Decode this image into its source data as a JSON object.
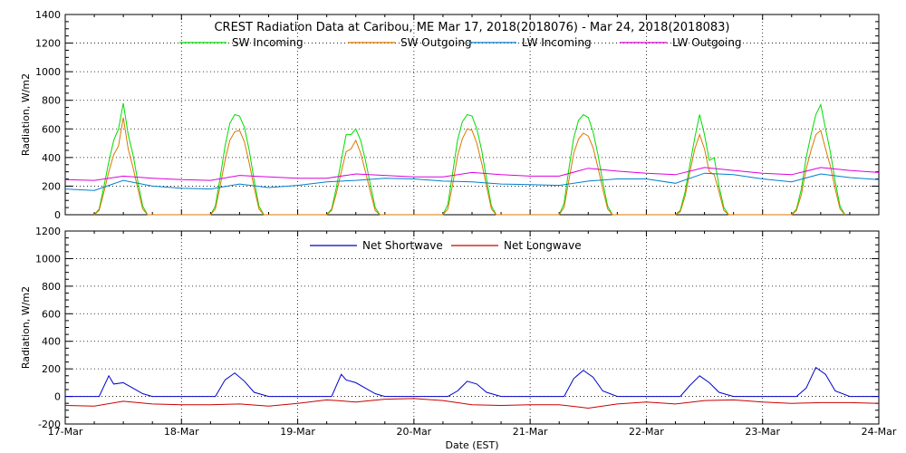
{
  "chart_data": [
    {
      "type": "line",
      "title": "CREST Radiation Data at Caribou, ME   Mar 17, 2018(2018076) - Mar 24, 2018(2018083)",
      "xlabel": "",
      "ylabel": "Radiation, W/m2",
      "xlim": [
        "2018-03-17",
        "2018-03-24"
      ],
      "ylim": [
        0,
        1400
      ],
      "yticks": [
        0,
        200,
        400,
        600,
        800,
        1000,
        1200,
        1400
      ],
      "xtick_labels": [
        "17-Mar",
        "18-Mar",
        "19-Mar",
        "20-Mar",
        "21-Mar",
        "22-Mar",
        "23-Mar",
        "24-Mar"
      ],
      "grid": true,
      "legend": "top",
      "series": [
        {
          "name": "SW Incoming",
          "color": "#00dd00",
          "x": [
            "2018-03-17 06:00",
            "2018-03-17 07:00",
            "2018-03-17 08:00",
            "2018-03-17 09:00",
            "2018-03-17 10:00",
            "2018-03-17 11:00",
            "2018-03-17 12:00",
            "2018-03-17 13:00",
            "2018-03-17 14:00",
            "2018-03-17 15:00",
            "2018-03-17 16:00",
            "2018-03-17 17:00",
            "2018-03-18 06:00",
            "2018-03-18 07:00",
            "2018-03-18 08:00",
            "2018-03-18 09:00",
            "2018-03-18 10:00",
            "2018-03-18 11:00",
            "2018-03-18 12:00",
            "2018-03-18 13:00",
            "2018-03-18 14:00",
            "2018-03-18 15:00",
            "2018-03-18 16:00",
            "2018-03-18 17:00",
            "2018-03-19 06:00",
            "2018-03-19 07:00",
            "2018-03-19 08:00",
            "2018-03-19 09:00",
            "2018-03-19 10:00",
            "2018-03-19 11:00",
            "2018-03-19 12:00",
            "2018-03-19 13:00",
            "2018-03-19 14:00",
            "2018-03-19 15:00",
            "2018-03-19 16:00",
            "2018-03-19 17:00",
            "2018-03-20 06:00",
            "2018-03-20 07:00",
            "2018-03-20 08:00",
            "2018-03-20 09:00",
            "2018-03-20 10:00",
            "2018-03-20 11:00",
            "2018-03-20 12:00",
            "2018-03-20 13:00",
            "2018-03-20 14:00",
            "2018-03-20 15:00",
            "2018-03-20 16:00",
            "2018-03-20 17:00",
            "2018-03-21 06:00",
            "2018-03-21 07:00",
            "2018-03-21 08:00",
            "2018-03-21 09:00",
            "2018-03-21 10:00",
            "2018-03-21 11:00",
            "2018-03-21 12:00",
            "2018-03-21 13:00",
            "2018-03-21 14:00",
            "2018-03-21 15:00",
            "2018-03-21 16:00",
            "2018-03-21 17:00",
            "2018-03-22 06:00",
            "2018-03-22 07:00",
            "2018-03-22 08:00",
            "2018-03-22 09:00",
            "2018-03-22 10:00",
            "2018-03-22 11:00",
            "2018-03-22 12:00",
            "2018-03-22 13:00",
            "2018-03-22 14:00",
            "2018-03-22 15:00",
            "2018-03-22 16:00",
            "2018-03-22 17:00",
            "2018-03-23 06:00",
            "2018-03-23 07:00",
            "2018-03-23 08:00",
            "2018-03-23 09:00",
            "2018-03-23 10:00",
            "2018-03-23 11:00",
            "2018-03-23 12:00",
            "2018-03-23 13:00",
            "2018-03-23 14:00",
            "2018-03-23 15:00",
            "2018-03-23 16:00",
            "2018-03-23 17:00"
          ],
          "values": [
            0,
            40,
            200,
            370,
            520,
            600,
            780,
            560,
            420,
            230,
            60,
            0,
            0,
            60,
            260,
            480,
            640,
            700,
            690,
            610,
            450,
            240,
            60,
            0,
            0,
            40,
            190,
            380,
            560,
            560,
            600,
            520,
            380,
            210,
            50,
            0,
            0,
            70,
            290,
            520,
            650,
            700,
            690,
            600,
            450,
            250,
            60,
            0,
            0,
            80,
            320,
            540,
            660,
            700,
            680,
            580,
            420,
            230,
            60,
            0,
            0,
            30,
            160,
            350,
            540,
            700,
            560,
            380,
            400,
            200,
            50,
            0,
            0,
            40,
            180,
            400,
            560,
            700,
            770,
            600,
            440,
            230,
            60,
            0
          ]
        },
        {
          "name": "SW Outgoing",
          "color": "#dd7700",
          "x": [
            "2018-03-17 06:00",
            "2018-03-17 07:00",
            "2018-03-17 08:00",
            "2018-03-17 09:00",
            "2018-03-17 10:00",
            "2018-03-17 11:00",
            "2018-03-17 12:00",
            "2018-03-17 13:00",
            "2018-03-17 14:00",
            "2018-03-17 15:00",
            "2018-03-17 16:00",
            "2018-03-17 17:00",
            "2018-03-18 06:00",
            "2018-03-18 07:00",
            "2018-03-18 08:00",
            "2018-03-18 09:00",
            "2018-03-18 10:00",
            "2018-03-18 11:00",
            "2018-03-18 12:00",
            "2018-03-18 13:00",
            "2018-03-18 14:00",
            "2018-03-18 15:00",
            "2018-03-18 16:00",
            "2018-03-18 17:00",
            "2018-03-19 06:00",
            "2018-03-19 07:00",
            "2018-03-19 08:00",
            "2018-03-19 09:00",
            "2018-03-19 10:00",
            "2018-03-19 11:00",
            "2018-03-19 12:00",
            "2018-03-19 13:00",
            "2018-03-19 14:00",
            "2018-03-19 15:00",
            "2018-03-19 16:00",
            "2018-03-19 17:00",
            "2018-03-20 06:00",
            "2018-03-20 07:00",
            "2018-03-20 08:00",
            "2018-03-20 09:00",
            "2018-03-20 10:00",
            "2018-03-20 11:00",
            "2018-03-20 12:00",
            "2018-03-20 13:00",
            "2018-03-20 14:00",
            "2018-03-20 15:00",
            "2018-03-20 16:00",
            "2018-03-20 17:00",
            "2018-03-21 06:00",
            "2018-03-21 07:00",
            "2018-03-21 08:00",
            "2018-03-21 09:00",
            "2018-03-21 10:00",
            "2018-03-21 11:00",
            "2018-03-21 12:00",
            "2018-03-21 13:00",
            "2018-03-21 14:00",
            "2018-03-21 15:00",
            "2018-03-21 16:00",
            "2018-03-21 17:00",
            "2018-03-22 06:00",
            "2018-03-22 07:00",
            "2018-03-22 08:00",
            "2018-03-22 09:00",
            "2018-03-22 10:00",
            "2018-03-22 11:00",
            "2018-03-22 12:00",
            "2018-03-22 13:00",
            "2018-03-22 14:00",
            "2018-03-22 15:00",
            "2018-03-22 16:00",
            "2018-03-22 17:00",
            "2018-03-23 06:00",
            "2018-03-23 07:00",
            "2018-03-23 08:00",
            "2018-03-23 09:00",
            "2018-03-23 10:00",
            "2018-03-23 11:00",
            "2018-03-23 12:00",
            "2018-03-23 13:00",
            "2018-03-23 14:00",
            "2018-03-23 15:00",
            "2018-03-23 16:00",
            "2018-03-23 17:00"
          ],
          "values": [
            0,
            30,
            160,
            300,
            420,
            480,
            680,
            460,
            330,
            180,
            40,
            0,
            0,
            40,
            200,
            380,
            520,
            580,
            590,
            510,
            360,
            190,
            40,
            0,
            0,
            30,
            150,
            300,
            440,
            460,
            520,
            430,
            300,
            160,
            30,
            0,
            0,
            40,
            210,
            410,
            530,
            600,
            590,
            500,
            360,
            200,
            40,
            0,
            0,
            50,
            240,
            430,
            530,
            570,
            550,
            470,
            330,
            180,
            40,
            0,
            0,
            20,
            130,
            300,
            460,
            560,
            460,
            300,
            280,
            160,
            30,
            0,
            0,
            30,
            140,
            320,
            450,
            560,
            590,
            460,
            340,
            180,
            40,
            0
          ]
        },
        {
          "name": "LW Incoming",
          "color": "#0080cc",
          "x": [
            "2018-03-17 00:00",
            "2018-03-17 06:00",
            "2018-03-17 12:00",
            "2018-03-17 18:00",
            "2018-03-18 00:00",
            "2018-03-18 06:00",
            "2018-03-18 12:00",
            "2018-03-18 18:00",
            "2018-03-19 00:00",
            "2018-03-19 06:00",
            "2018-03-19 12:00",
            "2018-03-19 18:00",
            "2018-03-20 00:00",
            "2018-03-20 06:00",
            "2018-03-20 12:00",
            "2018-03-20 18:00",
            "2018-03-21 00:00",
            "2018-03-21 06:00",
            "2018-03-21 12:00",
            "2018-03-21 18:00",
            "2018-03-22 00:00",
            "2018-03-22 06:00",
            "2018-03-22 12:00",
            "2018-03-22 18:00",
            "2018-03-23 00:00",
            "2018-03-23 06:00",
            "2018-03-23 12:00",
            "2018-03-23 18:00",
            "2018-03-24 00:00"
          ],
          "values": [
            180,
            170,
            240,
            200,
            185,
            180,
            215,
            190,
            205,
            230,
            240,
            255,
            250,
            235,
            230,
            215,
            210,
            205,
            235,
            250,
            250,
            220,
            290,
            280,
            250,
            230,
            285,
            260,
            245
          ]
        },
        {
          "name": "LW Outgoing",
          "color": "#dd00dd",
          "x": [
            "2018-03-17 00:00",
            "2018-03-17 06:00",
            "2018-03-17 12:00",
            "2018-03-17 18:00",
            "2018-03-18 00:00",
            "2018-03-18 06:00",
            "2018-03-18 12:00",
            "2018-03-18 18:00",
            "2018-03-19 00:00",
            "2018-03-19 06:00",
            "2018-03-19 12:00",
            "2018-03-19 18:00",
            "2018-03-20 00:00",
            "2018-03-20 06:00",
            "2018-03-20 12:00",
            "2018-03-20 18:00",
            "2018-03-21 00:00",
            "2018-03-21 06:00",
            "2018-03-21 12:00",
            "2018-03-21 18:00",
            "2018-03-22 00:00",
            "2018-03-22 06:00",
            "2018-03-22 12:00",
            "2018-03-22 18:00",
            "2018-03-23 00:00",
            "2018-03-23 06:00",
            "2018-03-23 12:00",
            "2018-03-23 18:00",
            "2018-03-24 00:00"
          ],
          "values": [
            245,
            240,
            270,
            255,
            245,
            240,
            275,
            265,
            255,
            255,
            285,
            275,
            265,
            265,
            295,
            280,
            270,
            270,
            325,
            305,
            290,
            280,
            330,
            310,
            290,
            280,
            330,
            310,
            295
          ]
        }
      ]
    },
    {
      "type": "line",
      "title": "",
      "xlabel": "Date (EST)",
      "ylabel": "Radiation, W/m2",
      "xlim": [
        "2018-03-17",
        "2018-03-24"
      ],
      "ylim": [
        -200,
        1200
      ],
      "yticks": [
        -200,
        0,
        200,
        400,
        600,
        800,
        1000,
        1200
      ],
      "xtick_labels": [
        "17-Mar",
        "18-Mar",
        "19-Mar",
        "20-Mar",
        "21-Mar",
        "22-Mar",
        "23-Mar",
        "24-Mar"
      ],
      "grid": true,
      "legend": "top",
      "series": [
        {
          "name": "Net Shortwave",
          "color": "#0000cc",
          "x": [
            "2018-03-17 00:00",
            "2018-03-17 07:00",
            "2018-03-17 09:00",
            "2018-03-17 10:00",
            "2018-03-17 12:00",
            "2018-03-17 14:00",
            "2018-03-17 16:00",
            "2018-03-17 18:00",
            "2018-03-18 07:00",
            "2018-03-18 09:00",
            "2018-03-18 11:00",
            "2018-03-18 13:00",
            "2018-03-18 15:00",
            "2018-03-18 18:00",
            "2018-03-19 07:00",
            "2018-03-19 09:00",
            "2018-03-19 10:00",
            "2018-03-19 12:00",
            "2018-03-19 14:00",
            "2018-03-19 16:00",
            "2018-03-19 18:00",
            "2018-03-20 07:00",
            "2018-03-20 09:00",
            "2018-03-20 11:00",
            "2018-03-20 13:00",
            "2018-03-20 15:00",
            "2018-03-20 18:00",
            "2018-03-21 07:00",
            "2018-03-21 09:00",
            "2018-03-21 11:00",
            "2018-03-21 13:00",
            "2018-03-21 15:00",
            "2018-03-21 18:00",
            "2018-03-22 07:00",
            "2018-03-22 09:00",
            "2018-03-22 11:00",
            "2018-03-22 13:00",
            "2018-03-22 15:00",
            "2018-03-22 18:00",
            "2018-03-23 07:00",
            "2018-03-23 09:00",
            "2018-03-23 11:00",
            "2018-03-23 13:00",
            "2018-03-23 15:00",
            "2018-03-23 18:00",
            "2018-03-24 00:00"
          ],
          "values": [
            0,
            0,
            150,
            90,
            100,
            60,
            20,
            0,
            0,
            120,
            170,
            110,
            30,
            0,
            0,
            160,
            120,
            100,
            60,
            20,
            0,
            0,
            40,
            110,
            90,
            30,
            0,
            0,
            130,
            190,
            140,
            40,
            0,
            0,
            80,
            150,
            100,
            30,
            0,
            0,
            60,
            210,
            160,
            40,
            0,
            0
          ]
        },
        {
          "name": "Net Longwave",
          "color": "#cc0000",
          "x": [
            "2018-03-17 00:00",
            "2018-03-17 06:00",
            "2018-03-17 12:00",
            "2018-03-17 18:00",
            "2018-03-18 00:00",
            "2018-03-18 06:00",
            "2018-03-18 12:00",
            "2018-03-18 18:00",
            "2018-03-19 00:00",
            "2018-03-19 06:00",
            "2018-03-19 12:00",
            "2018-03-19 18:00",
            "2018-03-20 00:00",
            "2018-03-20 06:00",
            "2018-03-20 12:00",
            "2018-03-20 18:00",
            "2018-03-21 00:00",
            "2018-03-21 06:00",
            "2018-03-21 12:00",
            "2018-03-21 18:00",
            "2018-03-22 00:00",
            "2018-03-22 06:00",
            "2018-03-22 12:00",
            "2018-03-22 18:00",
            "2018-03-23 00:00",
            "2018-03-23 06:00",
            "2018-03-23 12:00",
            "2018-03-23 18:00",
            "2018-03-24 00:00"
          ],
          "values": [
            -65,
            -70,
            -35,
            -55,
            -60,
            -60,
            -55,
            -70,
            -50,
            -25,
            -40,
            -20,
            -15,
            -30,
            -60,
            -65,
            -60,
            -60,
            -85,
            -55,
            -40,
            -55,
            -30,
            -25,
            -40,
            -50,
            -45,
            -45,
            -50
          ]
        }
      ]
    }
  ]
}
